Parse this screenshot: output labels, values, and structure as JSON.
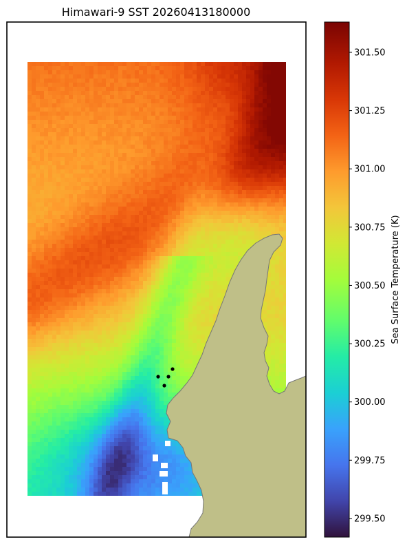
{
  "chart_data": {
    "type": "heatmap",
    "title": "Himawari-9 SST 20260413180000",
    "colorbar": {
      "label": "Sea Surface Temperature (K)",
      "colormap": "turbo",
      "vmin": 299.42,
      "vmax": 301.63,
      "ticks": [
        299.5,
        299.75,
        300.0,
        300.25,
        300.5,
        300.75,
        301.0,
        301.25,
        301.5
      ],
      "tick_labels": [
        "299.50",
        "299.75",
        "300.00",
        "300.25",
        "300.50",
        "300.75",
        "301.00",
        "301.25",
        "301.50"
      ]
    },
    "field_description": {
      "northeast_max": 301.6,
      "central_band": 301.2,
      "southwest_min": 299.9,
      "coastal_min": 299.5
    },
    "land_color": "#bfbf88",
    "no_data_color": "#ffffff",
    "markers": {
      "color": "#000000",
      "count": 4
    }
  }
}
